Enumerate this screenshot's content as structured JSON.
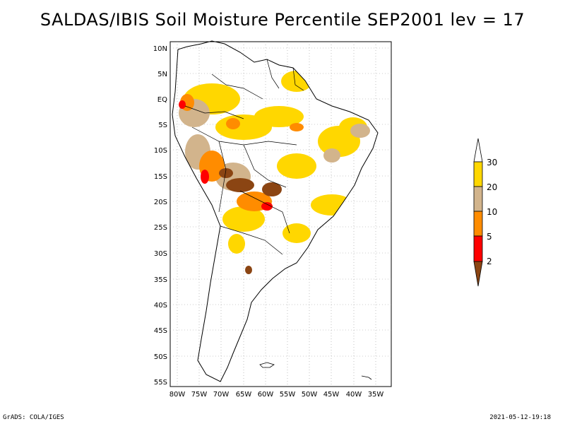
{
  "title": "SALDAS/IBIS Soil Moisture Percentile SEP2001 lev = 17",
  "footer": {
    "left": "GrADS: COLA/IGES",
    "right": "2021-05-12-19:18"
  },
  "map": {
    "lat_labels": [
      "10N",
      "5N",
      "EQ",
      "5S",
      "10S",
      "15S",
      "20S",
      "25S",
      "30S",
      "35S",
      "40S",
      "45S",
      "50S",
      "55S"
    ],
    "lon_labels": [
      "80W",
      "75W",
      "70W",
      "65W",
      "60W",
      "55W",
      "50W",
      "45W",
      "40W",
      "35W"
    ],
    "lon_range": [
      -81,
      -31
    ],
    "lat_range": [
      -56,
      12
    ],
    "grid": true
  },
  "colorbar": {
    "labels": [
      "2",
      "5",
      "10",
      "20",
      "30"
    ],
    "colors": {
      "lt2": "#8b4513",
      "b2_5": "#ff0000",
      "b5_10": "#ff8c00",
      "b10_20": "#d2b48c",
      "b20_30": "#ffd700",
      "gt30": "#ffffff"
    }
  }
}
